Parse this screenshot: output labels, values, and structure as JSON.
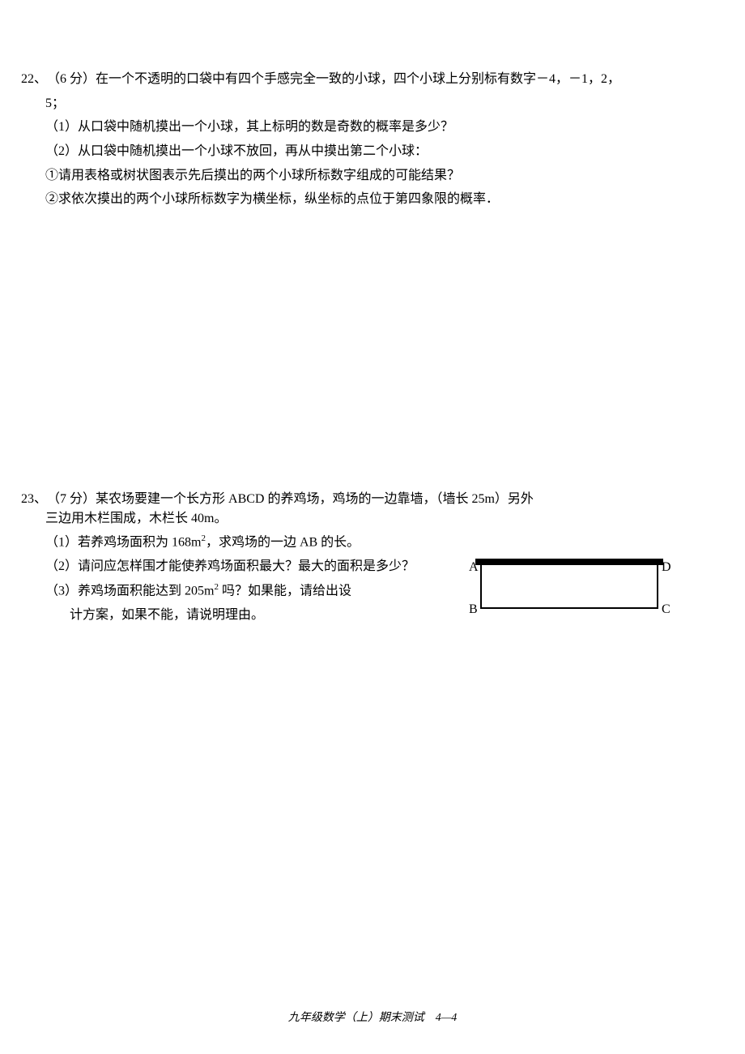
{
  "problem22": {
    "number": "22、",
    "points": "（6 分）",
    "intro_line1": "在一个不透明的口袋中有四个手感完全一致的小球，四个小球上分别标有数字－4，－1，2，",
    "intro_line2": "5；",
    "item1": "（1）从口袋中随机摸出一个小球，其上标明的数是奇数的概率是多少？",
    "item2": "（2）从口袋中随机摸出一个小球不放回，再从中摸出第二个小球：",
    "sub1": "①请用表格或树状图表示先后摸出的两个小球所标数字组成的可能结果？",
    "sub2": "②求依次摸出的两个小球所标数字为横坐标，纵坐标的点位于第四象限的概率．"
  },
  "problem23": {
    "number": "23、",
    "points": "（7 分）",
    "intro_line1": "某农场要建一个长方形 ABCD 的养鸡场，鸡场的一边靠墙，（墙长 25m）另外",
    "intro_line2": "三边用木栏围成，木栏长 40m。",
    "item1_pre": "（1）若养鸡场面积为 168m",
    "item1_post": "，求鸡场的一边 AB 的长。",
    "item2": "（2）请问应怎样围才能使养鸡场面积最大？最大的面积是多少？",
    "item3_line1_pre": "（3）养鸡场面积能达到 205m",
    "item3_line1_post": " 吗？如果能，请给出设",
    "item3_line2": "计方案，如果不能，请说明理由。",
    "figure": {
      "labels": {
        "A": "A",
        "B": "B",
        "C": "C",
        "D": "D"
      },
      "wall_color": "#000000",
      "border_color": "#000000",
      "rect_width": 220,
      "rect_height": 56
    }
  },
  "footer": "九年级数学（上）期末测试　4—4"
}
